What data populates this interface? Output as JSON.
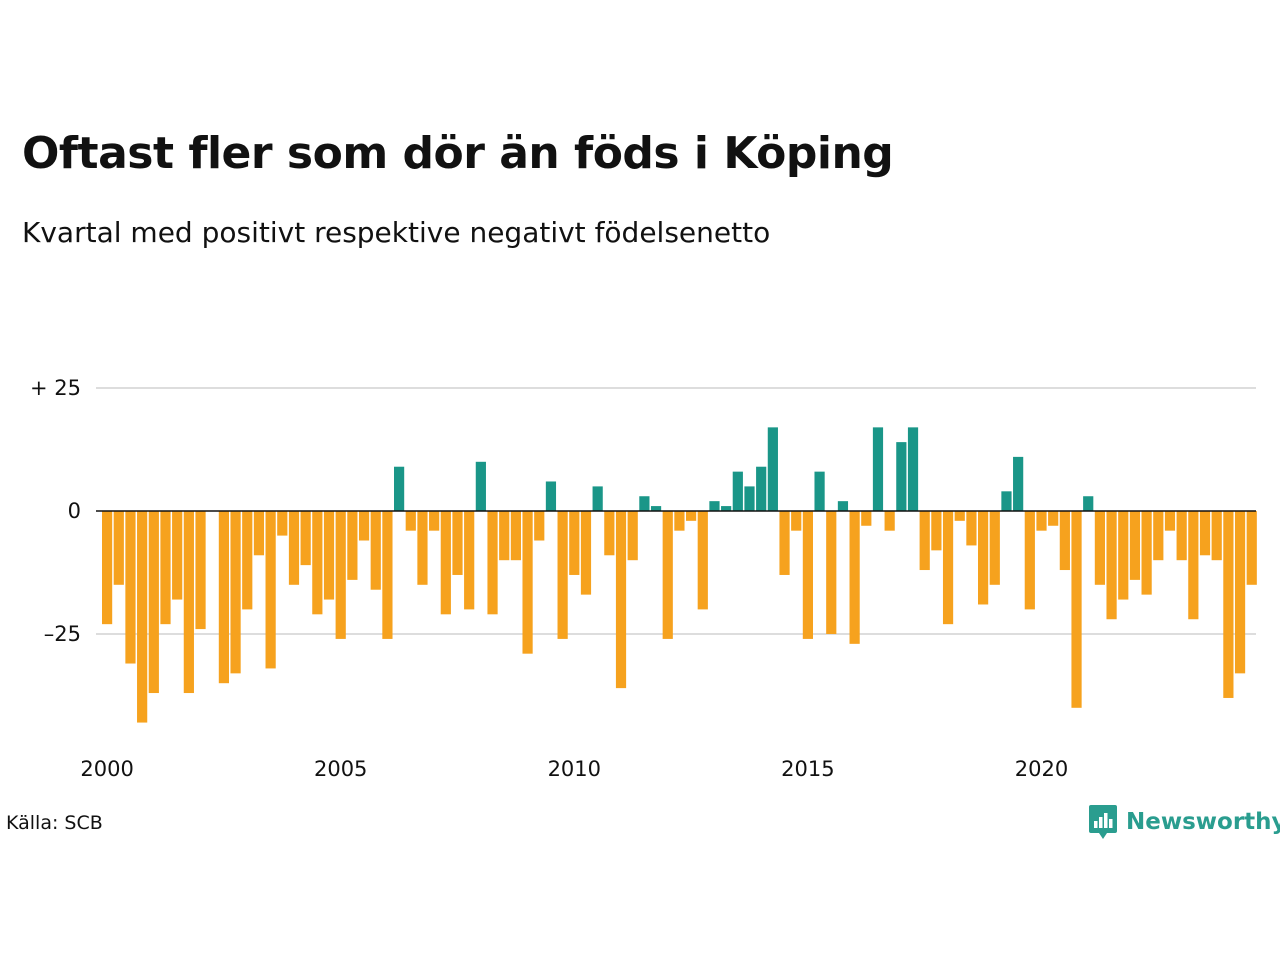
{
  "title": "Oftast fler som dör än föds i Köping",
  "subtitle": "Kvartal med positivt respektive negativt födelsenetto",
  "source": "Källa: SCB",
  "brand": {
    "name": "Newsworthy",
    "icon": "newsworthy-logo-icon",
    "color": "#2a9d8f"
  },
  "chart_data": {
    "type": "bar",
    "title": "Oftast fler som dör än föds i Köping",
    "subtitle": "Kvartal med positivt respektive negativt födelsenetto",
    "ylim": [
      -45,
      30
    ],
    "yticks": [
      {
        "value": 25,
        "label": "+ 25"
      },
      {
        "value": 0,
        "label": "0"
      },
      {
        "value": -25,
        "label": "–25"
      }
    ],
    "xticks": [
      {
        "index": 0,
        "label": "2000"
      },
      {
        "index": 20,
        "label": "2005"
      },
      {
        "index": 40,
        "label": "2010"
      },
      {
        "index": 60,
        "label": "2015"
      },
      {
        "index": 80,
        "label": "2020"
      }
    ],
    "x_start": "2000 Q1",
    "frequency": "quarterly",
    "grid": true,
    "colors": {
      "positive": "#1a9688",
      "negative": "#f6a21e",
      "grid": "#dddddd",
      "zero_line": "#111111"
    },
    "values": [
      -23,
      -15,
      -31,
      -43,
      -37,
      -23,
      -18,
      -37,
      -24,
      0,
      -35,
      -33,
      -20,
      -9,
      -32,
      -5,
      -15,
      -11,
      -21,
      -18,
      -26,
      -14,
      -6,
      -16,
      -26,
      9,
      -4,
      -15,
      -4,
      -21,
      -13,
      -20,
      10,
      -21,
      -10,
      -10,
      -29,
      -6,
      6,
      -26,
      -13,
      -17,
      5,
      -9,
      -36,
      -10,
      3,
      1,
      -26,
      -4,
      -2,
      -20,
      2,
      1,
      8,
      5,
      9,
      17,
      -13,
      -4,
      -26,
      8,
      -25,
      2,
      -27,
      -3,
      17,
      -4,
      14,
      17,
      -12,
      -8,
      -23,
      -2,
      -7,
      -19,
      -15,
      4,
      11,
      -20,
      -4,
      -3,
      -12,
      -40,
      3,
      -15,
      -22,
      -18,
      -14,
      -17,
      -10,
      -4,
      -10,
      -22,
      -9,
      -10,
      -38,
      -33,
      -15
    ]
  }
}
